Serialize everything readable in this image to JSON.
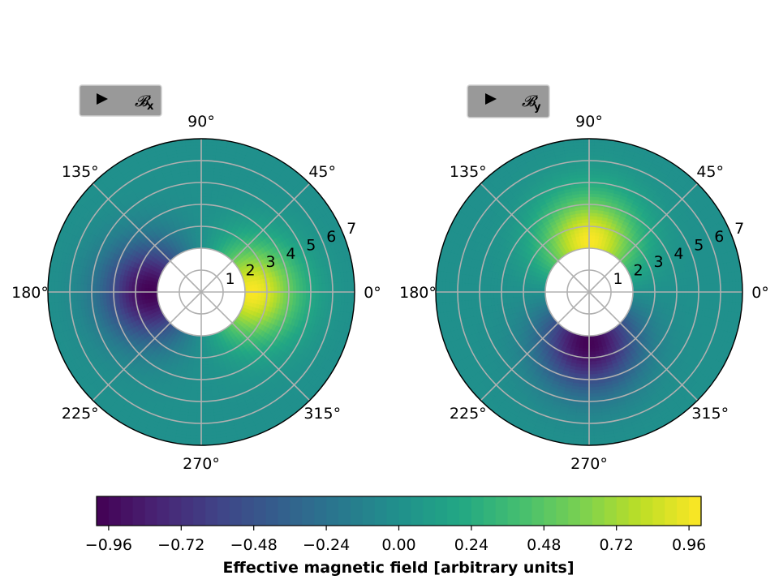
{
  "chart_data": {
    "type": "heatmap",
    "projection": "polar",
    "panels": [
      {
        "button": {
          "icon": "play-icon",
          "label": "𝓑",
          "subscript": "x"
        },
        "angle_tick_labels": [
          "0°",
          "45°",
          "90°",
          "135°",
          "180°",
          "225°",
          "270°",
          "315°"
        ],
        "radial_tick_labels": [
          "1",
          "2",
          "3",
          "4",
          "5",
          "6",
          "7"
        ],
        "rlim": [
          0,
          7
        ],
        "inner_hole_radius": 2,
        "peak": {
          "angle_deg": 0,
          "radius": 2.3,
          "value": 1.0
        },
        "trough": {
          "angle_deg": 180,
          "radius": 2.3,
          "value": -1.0
        },
        "grid": true
      },
      {
        "button": {
          "icon": "play-icon",
          "label": "𝓑",
          "subscript": "y"
        },
        "angle_tick_labels": [
          "0°",
          "45°",
          "90°",
          "135°",
          "180°",
          "225°",
          "270°",
          "315°"
        ],
        "radial_tick_labels": [
          "1",
          "2",
          "3",
          "4",
          "5",
          "6",
          "7"
        ],
        "rlim": [
          0,
          7
        ],
        "inner_hole_radius": 2,
        "peak": {
          "angle_deg": 90,
          "radius": 2.3,
          "value": 1.0
        },
        "trough": {
          "angle_deg": 270,
          "radius": 2.3,
          "value": -1.0
        },
        "grid": true
      }
    ],
    "colorbar": {
      "colormap": "viridis",
      "range": [
        -1.0,
        1.0
      ],
      "tick_labels": [
        "−0.96",
        "−0.72",
        "−0.48",
        "−0.24",
        "0.00",
        "0.24",
        "0.48",
        "0.72",
        "0.96"
      ],
      "tick_values": [
        -0.96,
        -0.72,
        -0.48,
        -0.24,
        0.0,
        0.24,
        0.48,
        0.72,
        0.96
      ],
      "label": "Effective magnetic field [arbitrary units]"
    }
  }
}
